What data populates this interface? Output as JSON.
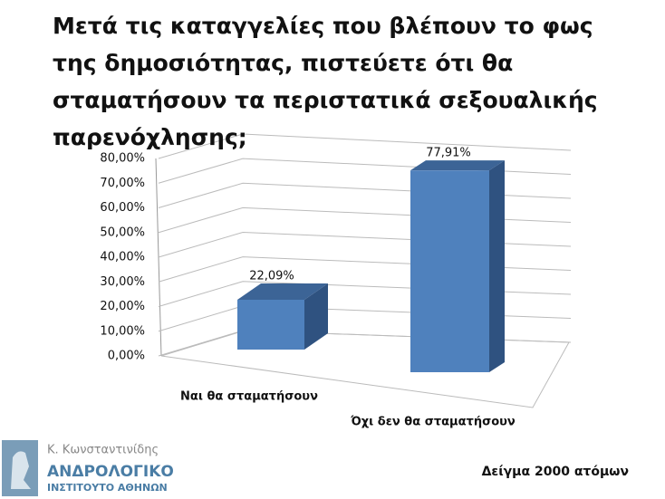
{
  "chart_data": {
    "type": "bar3d",
    "title": "Μετά τις καταγγελίες που βλέπουν το φως της δημοσιότητας, πιστεύετε ότι θα σταματήσουν τα περιστατικά σεξουαλικής παρενόχλησης;",
    "categories": [
      "Ναι θα σταματήσουν",
      "Όχι δεν θα σταματήσουν"
    ],
    "values": [
      22.09,
      77.91
    ],
    "value_labels": [
      "22,09%",
      "77,91%"
    ],
    "color": "#4f81bd",
    "ylim": [
      0,
      80
    ],
    "yticks": [
      {
        "value": 0,
        "label": "0,00%"
      },
      {
        "value": 10,
        "label": "10,00%"
      },
      {
        "value": 20,
        "label": "20,00%"
      },
      {
        "value": 30,
        "label": "30,00%"
      },
      {
        "value": 40,
        "label": "40,00%"
      },
      {
        "value": 50,
        "label": "50,00%"
      },
      {
        "value": 60,
        "label": "60,00%"
      },
      {
        "value": 70,
        "label": "70,00%"
      },
      {
        "value": 80,
        "label": "80,00%"
      }
    ],
    "grid": true,
    "note": "Δείγμα 2000 ατόμων"
  },
  "logo": {
    "name": "Κ. Κωνσταντινίδης",
    "line1": "ΑΝΔΡΟΛΟΓΙΚΟ",
    "line2": "ΙΝΣΤΙΤΟΥΤΟ ΑΘΗΝΩΝ"
  }
}
